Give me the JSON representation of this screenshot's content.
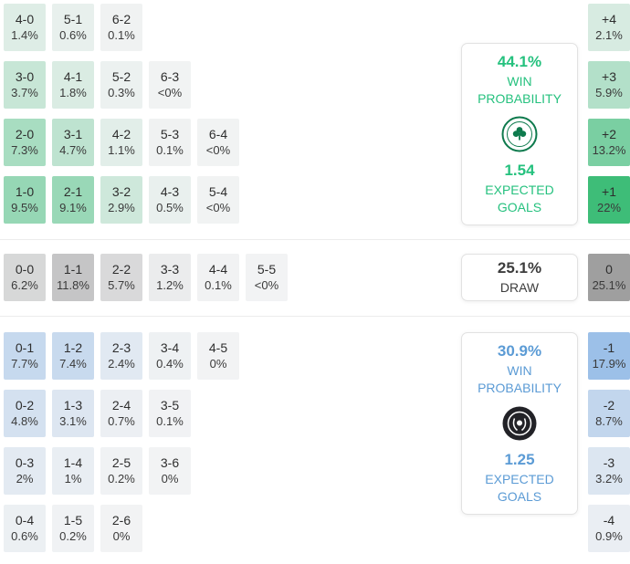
{
  "colors": {
    "home_accent": "#25c17e",
    "away_accent": "#5b9bd5",
    "draw_text": "#3c3c3c",
    "cell_base": "#f2f3f4",
    "home_cell_max": "#3ebd78",
    "draw_cell_max": "#9f9f9f",
    "away_cell_max": "#9cc0e8",
    "divider": "#ececec"
  },
  "chart_data": {
    "type": "heatmap",
    "home": {
      "panel": {
        "win_pct": "44.1%",
        "win_label": [
          "WIN",
          "PROBABILITY"
        ],
        "expected_goals": "1.54",
        "expected_label": [
          "EXPECTED",
          "GOALS"
        ]
      },
      "max_v": 22,
      "rows": [
        [
          {
            "score": "4-0",
            "pct": "1.4%",
            "v": 1.4
          },
          {
            "score": "5-1",
            "pct": "0.6%",
            "v": 0.6
          },
          {
            "score": "6-2",
            "pct": "0.1%",
            "v": 0.1
          }
        ],
        [
          {
            "score": "3-0",
            "pct": "3.7%",
            "v": 3.7
          },
          {
            "score": "4-1",
            "pct": "1.8%",
            "v": 1.8
          },
          {
            "score": "5-2",
            "pct": "0.3%",
            "v": 0.3
          },
          {
            "score": "6-3",
            "pct": "<0%",
            "v": 0.03
          }
        ],
        [
          {
            "score": "2-0",
            "pct": "7.3%",
            "v": 7.3
          },
          {
            "score": "3-1",
            "pct": "4.7%",
            "v": 4.7
          },
          {
            "score": "4-2",
            "pct": "1.1%",
            "v": 1.1
          },
          {
            "score": "5-3",
            "pct": "0.1%",
            "v": 0.1
          },
          {
            "score": "6-4",
            "pct": "<0%",
            "v": 0.03
          }
        ],
        [
          {
            "score": "1-0",
            "pct": "9.5%",
            "v": 9.5
          },
          {
            "score": "2-1",
            "pct": "9.1%",
            "v": 9.1
          },
          {
            "score": "3-2",
            "pct": "2.9%",
            "v": 2.9
          },
          {
            "score": "4-3",
            "pct": "0.5%",
            "v": 0.5
          },
          {
            "score": "5-4",
            "pct": "<0%",
            "v": 0.03
          }
        ]
      ],
      "margins": [
        {
          "label": "+4",
          "pct": "2.1%",
          "v": 2.1
        },
        {
          "label": "+3",
          "pct": "5.9%",
          "v": 5.9
        },
        {
          "label": "+2",
          "pct": "13.2%",
          "v": 13.2
        },
        {
          "label": "+1",
          "pct": "22%",
          "v": 22
        }
      ]
    },
    "draw": {
      "panel": {
        "pct": "25.1%",
        "label": "DRAW"
      },
      "max_v": 25.1,
      "rows": [
        [
          {
            "score": "0-0",
            "pct": "6.2%",
            "v": 6.2
          },
          {
            "score": "1-1",
            "pct": "11.8%",
            "v": 11.8
          },
          {
            "score": "2-2",
            "pct": "5.7%",
            "v": 5.7
          },
          {
            "score": "3-3",
            "pct": "1.2%",
            "v": 1.2
          },
          {
            "score": "4-4",
            "pct": "0.1%",
            "v": 0.1
          },
          {
            "score": "5-5",
            "pct": "<0%",
            "v": 0.03
          }
        ]
      ],
      "margins": [
        {
          "label": "0",
          "pct": "25.1%",
          "v": 25.1
        }
      ]
    },
    "away": {
      "panel": {
        "win_pct": "30.9%",
        "win_label": [
          "WIN",
          "PROBABILITY"
        ],
        "expected_goals": "1.25",
        "expected_label": [
          "EXPECTED",
          "GOALS"
        ]
      },
      "max_v": 17.9,
      "rows": [
        [
          {
            "score": "0-1",
            "pct": "7.7%",
            "v": 7.7
          },
          {
            "score": "1-2",
            "pct": "7.4%",
            "v": 7.4
          },
          {
            "score": "2-3",
            "pct": "2.4%",
            "v": 2.4
          },
          {
            "score": "3-4",
            "pct": "0.4%",
            "v": 0.4
          },
          {
            "score": "4-5",
            "pct": "0%",
            "v": 0.02
          }
        ],
        [
          {
            "score": "0-2",
            "pct": "4.8%",
            "v": 4.8
          },
          {
            "score": "1-3",
            "pct": "3.1%",
            "v": 3.1
          },
          {
            "score": "2-4",
            "pct": "0.7%",
            "v": 0.7
          },
          {
            "score": "3-5",
            "pct": "0.1%",
            "v": 0.1
          }
        ],
        [
          {
            "score": "0-3",
            "pct": "2%",
            "v": 2.0
          },
          {
            "score": "1-4",
            "pct": "1%",
            "v": 1.0
          },
          {
            "score": "2-5",
            "pct": "0.2%",
            "v": 0.2
          },
          {
            "score": "3-6",
            "pct": "0%",
            "v": 0.02
          }
        ],
        [
          {
            "score": "0-4",
            "pct": "0.6%",
            "v": 0.6
          },
          {
            "score": "1-5",
            "pct": "0.2%",
            "v": 0.2
          },
          {
            "score": "2-6",
            "pct": "0%",
            "v": 0.02
          }
        ]
      ],
      "margins": [
        {
          "label": "-1",
          "pct": "17.9%",
          "v": 17.9
        },
        {
          "label": "-2",
          "pct": "8.7%",
          "v": 8.7
        },
        {
          "label": "-3",
          "pct": "3.2%",
          "v": 3.2
        },
        {
          "label": "-4",
          "pct": "0.9%",
          "v": 0.9
        }
      ]
    }
  }
}
